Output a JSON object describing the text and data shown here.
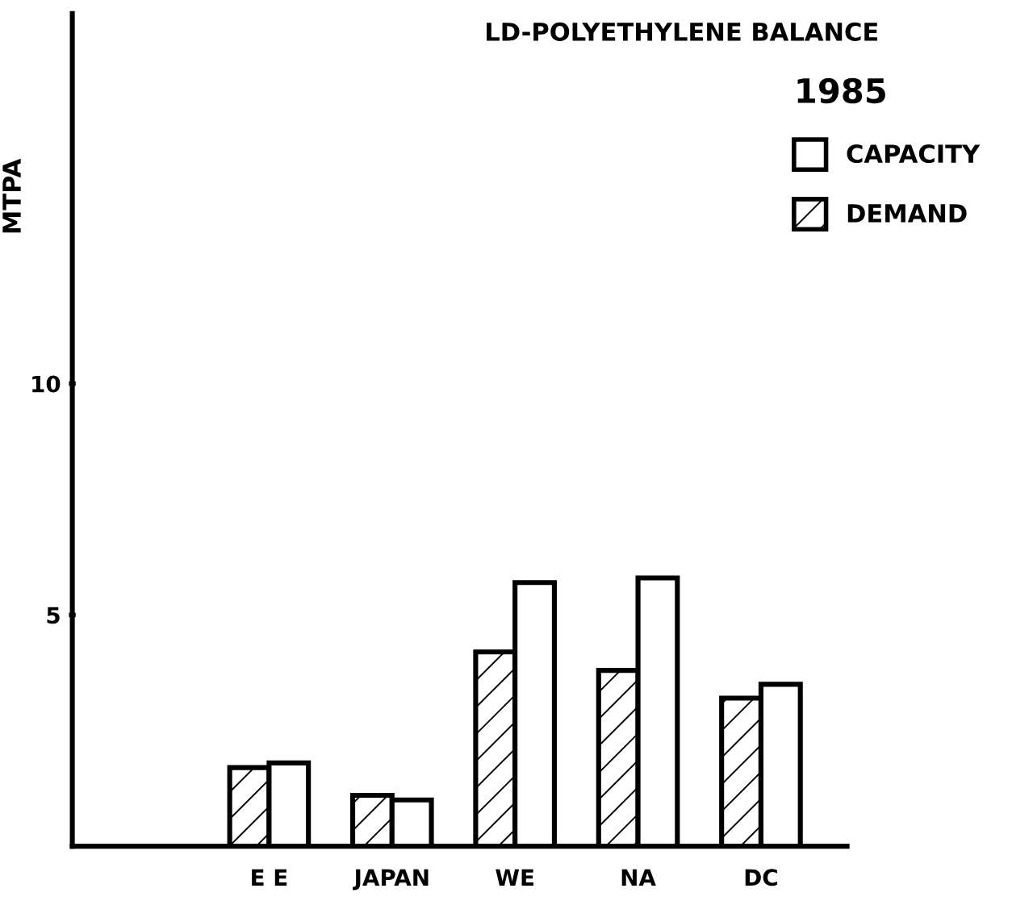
{
  "chart_data": {
    "type": "bar",
    "title": "LD-POLYETHYLENE BALANCE",
    "legend_title": "1985",
    "ylabel": "MTPA",
    "categories": [
      "E E",
      "JAPAN",
      "WE",
      "NA",
      "DC"
    ],
    "series": [
      {
        "name": "DEMAND",
        "color": "#ffffff",
        "values": [
          1.7,
          1.1,
          4.2,
          3.8,
          3.2
        ]
      },
      {
        "name": "CAPACITY",
        "color": "#ffffff",
        "values": [
          1.8,
          1.0,
          5.7,
          5.8,
          3.5
        ]
      }
    ],
    "ylim": [
      0,
      18
    ],
    "yticks": [
      5,
      10
    ],
    "grid": false,
    "legend": "top right"
  }
}
